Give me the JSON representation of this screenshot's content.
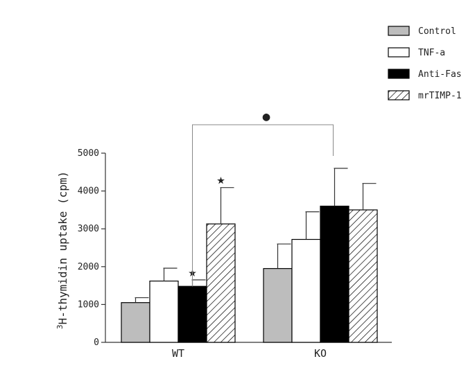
{
  "chart_data": {
    "type": "bar",
    "ylabel_superscript": "3",
    "ylabel": "H-thymidin uptake (cpm)",
    "ylim": [
      0,
      5000
    ],
    "yticks": [
      "0",
      "1000",
      "2000",
      "3000",
      "4000",
      "5000"
    ],
    "categories": [
      "WT",
      "KO"
    ],
    "legend_position": "top-right",
    "series": [
      {
        "name": "Control",
        "values": [
          1050,
          1950
        ],
        "errors": [
          130,
          650
        ],
        "fill": "gray"
      },
      {
        "name": "TNF-a",
        "values": [
          1620,
          2720
        ],
        "errors": [
          340,
          730
        ],
        "fill": "white"
      },
      {
        "name": "Anti-Fas",
        "values": [
          1480,
          3600
        ],
        "errors": [
          170,
          1000
        ],
        "fill": "black"
      },
      {
        "name": "mrTIMP-1",
        "values": [
          3130,
          3500
        ],
        "errors": [
          960,
          700
        ],
        "fill": "hatched"
      }
    ],
    "annotations": [
      {
        "symbol": "★",
        "category": "WT",
        "series": "Anti-Fas"
      },
      {
        "symbol": "★",
        "category": "WT",
        "series": "mrTIMP-1"
      },
      {
        "symbol": "●",
        "note": "bracket between WT and KO Anti-Fas bars"
      }
    ],
    "colors": {
      "gray": "#bdbdbd",
      "black": "#000000",
      "white": "#ffffff",
      "axis": "#333333"
    }
  }
}
